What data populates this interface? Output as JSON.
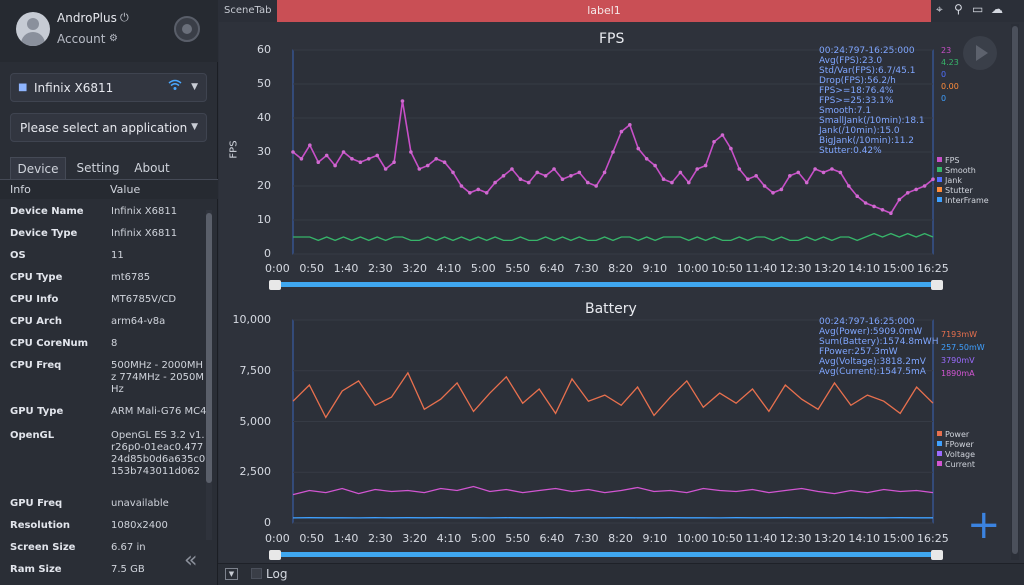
{
  "profile": {
    "app_name": "AndroPlus",
    "account_label": "Account",
    "power_icon": "power-icon",
    "account_icon": "user-settings-icon"
  },
  "device_select": {
    "value": "Infinix X6811",
    "icon": "android-icon",
    "status_icon": "wifi-icon"
  },
  "app_select": {
    "placeholder": "Please select an application"
  },
  "tabs": {
    "device": "Device",
    "setting": "Setting",
    "about": "About"
  },
  "info_table": {
    "headers": [
      "Info",
      "Value"
    ],
    "rows": [
      {
        "key": "Device Name",
        "value": "Infinix X6811"
      },
      {
        "key": "Device Type",
        "value": "Infinix X6811"
      },
      {
        "key": "OS",
        "value": "11"
      },
      {
        "key": "CPU Type",
        "value": "mt6785"
      },
      {
        "key": "CPU Info",
        "value": "MT6785V/CD"
      },
      {
        "key": "CPU Arch",
        "value": "arm64-v8a"
      },
      {
        "key": "CPU CoreNum",
        "value": "8"
      },
      {
        "key": "CPU Freq",
        "value": "500MHz - 2000MHz 774MHz - 2050MHz"
      },
      {
        "key": "GPU Type",
        "value": "ARM Mali-G76 MC4"
      },
      {
        "key": "OpenGL",
        "value": "OpenGL ES 3.2 v1.r26p0-01eac0.47724d85b0d6a635c0153b743011d062"
      },
      {
        "key": "GPU Freq",
        "value": "unavailable"
      },
      {
        "key": "Resolution",
        "value": "1080x2400"
      },
      {
        "key": "Screen Size",
        "value": "6.67 in"
      },
      {
        "key": "Ram Size",
        "value": "7.5 GB"
      }
    ]
  },
  "topbar": {
    "scene_tab": "SceneTab",
    "label": "label1",
    "accent": "#c94f55"
  },
  "bottombar": {
    "log_label": "Log"
  },
  "chart_data": [
    {
      "type": "line",
      "title": "FPS",
      "ylabel": "FPS",
      "ylim": [
        0,
        60
      ],
      "yticks": [
        0,
        10,
        20,
        30,
        40,
        50,
        60
      ],
      "xticks": [
        "0:00",
        "0:50",
        "1:40",
        "2:30",
        "3:20",
        "4:10",
        "5:00",
        "5:50",
        "6:40",
        "7:30",
        "8:20",
        "9:10",
        "10:00",
        "10:50",
        "11:40",
        "12:30",
        "13:20",
        "14:10",
        "15:00",
        "16:25"
      ],
      "legend": [
        {
          "name": "FPS",
          "color": "#c84fc8"
        },
        {
          "name": "Smooth",
          "color": "#37b56a"
        },
        {
          "name": "Jank",
          "color": "#4f6fff"
        },
        {
          "name": "Stutter",
          "color": "#ff8c3a"
        },
        {
          "name": "InterFrame",
          "color": "#3fa0ff"
        }
      ],
      "legend_position": "right",
      "stats": [
        "00:24:797-16:25:000",
        "Avg(FPS):23.0",
        "Std/Var(FPS):6.7/45.1",
        "Drop(FPS):56.2/h",
        "FPS>=18:76.4%",
        "FPS>=25:33.1%",
        "Smooth:7.1",
        "SmallJank(/10min):18.1",
        "Jank(/10min):15.0",
        "BigJank(/10min):11.2",
        "Stutter:0.42%"
      ],
      "side_values": [
        {
          "text": "23",
          "color": "#c84fc8"
        },
        {
          "text": "4.23",
          "color": "#37b56a"
        },
        {
          "text": "0",
          "color": "#4f6fff"
        },
        {
          "text": "0.00",
          "color": "#ff8c3a"
        },
        {
          "text": "0",
          "color": "#3fa0ff"
        }
      ],
      "series": [
        {
          "name": "FPS",
          "values": [
            30,
            28,
            32,
            27,
            29,
            26,
            30,
            28,
            27,
            28,
            29,
            25,
            27,
            45,
            30,
            25,
            26,
            28,
            27,
            24,
            20,
            18,
            19,
            18,
            21,
            23,
            25,
            22,
            21,
            24,
            23,
            25,
            22,
            23,
            24,
            21,
            20,
            24,
            30,
            36,
            38,
            31,
            28,
            26,
            22,
            21,
            24,
            21,
            25,
            26,
            33,
            35,
            31,
            25,
            22,
            23,
            20,
            18,
            19,
            23,
            24,
            21,
            25,
            24,
            25,
            24,
            20,
            17,
            15,
            14,
            13,
            12,
            16,
            18,
            19,
            20,
            22
          ]
        },
        {
          "name": "Smooth",
          "values": [
            5,
            5,
            5,
            4,
            5,
            4,
            5,
            4,
            5,
            4,
            5,
            4,
            5,
            5,
            4,
            4,
            5,
            4,
            5,
            4,
            5,
            4,
            5,
            4,
            5,
            4,
            4,
            5,
            4,
            4,
            5,
            4,
            5,
            4,
            5,
            4,
            4,
            5,
            4,
            5,
            5,
            4,
            5,
            4,
            5,
            5,
            5,
            4,
            5,
            4,
            5,
            4,
            4,
            5,
            4,
            5,
            5,
            4,
            5,
            4,
            4,
            5,
            4,
            5,
            4,
            5,
            5,
            4,
            5,
            6,
            5,
            6,
            5,
            6,
            5,
            6,
            5
          ]
        }
      ]
    },
    {
      "type": "line",
      "title": "Battery",
      "ylim": [
        0,
        10000
      ],
      "yticks": [
        "0",
        "2,500",
        "5,000",
        "7,500",
        "10,000"
      ],
      "ytick_values": [
        0,
        2500,
        5000,
        7500,
        10000
      ],
      "xticks": [
        "0:00",
        "0:50",
        "1:40",
        "2:30",
        "3:20",
        "4:10",
        "5:00",
        "5:50",
        "6:40",
        "7:30",
        "8:20",
        "9:10",
        "10:00",
        "10:50",
        "11:40",
        "12:30",
        "13:20",
        "14:10",
        "15:00",
        "16:25"
      ],
      "legend": [
        {
          "name": "Power",
          "color": "#e8704e"
        },
        {
          "name": "FPower",
          "color": "#3fa0ff"
        },
        {
          "name": "Voltage",
          "color": "#9b6bff"
        },
        {
          "name": "Current",
          "color": "#d255d2"
        }
      ],
      "legend_position": "right",
      "stats": [
        "00:24:797-16:25:000",
        "Avg(Power):5909.0mW",
        "Sum(Battery):1574.8mWH",
        "FPower:257.3mW",
        "Avg(Voltage):3818.2mV",
        "Avg(Current):1547.5mA"
      ],
      "side_values": [
        {
          "text": "7193mW",
          "color": "#e8704e"
        },
        {
          "text": "257.50mW",
          "color": "#3fa0ff"
        },
        {
          "text": "3790mV",
          "color": "#9b6bff"
        },
        {
          "text": "1890mA",
          "color": "#d255d2"
        }
      ],
      "series": [
        {
          "name": "Power",
          "values": [
            6000,
            6800,
            5200,
            6500,
            7000,
            5800,
            6200,
            7400,
            5600,
            6100,
            6900,
            5500,
            6400,
            7200,
            5900,
            6600,
            5400,
            7100,
            6000,
            6300,
            5800,
            6700,
            5300,
            6200,
            7000,
            5700,
            6400,
            5900,
            6600,
            5500,
            6800,
            6100,
            5600,
            6900,
            5800,
            6300,
            6000,
            5400,
            6700,
            5900
          ]
        },
        {
          "name": "Current",
          "values": [
            1400,
            1600,
            1500,
            1700,
            1450,
            1650,
            1550,
            1600,
            1500,
            1700,
            1600,
            1800,
            1550,
            1650,
            1500,
            1600,
            1700,
            1550,
            1650,
            1500,
            1600,
            1750,
            1550,
            1600,
            1500,
            1700,
            1600,
            1550,
            1650,
            1500,
            1600,
            1700,
            1550,
            1450,
            1600,
            1500,
            1650,
            1550,
            1600,
            1500
          ]
        },
        {
          "name": "FPower",
          "values": [
            250,
            260,
            255,
            258,
            252,
            262,
            257,
            259,
            254,
            261,
            256,
            258,
            253,
            260,
            257,
            255,
            259,
            256,
            258,
            254,
            262,
            257,
            255,
            259,
            256,
            258,
            253,
            260,
            257,
            255,
            259,
            256,
            258,
            254,
            261,
            257,
            255,
            259,
            256,
            258
          ]
        }
      ]
    }
  ]
}
